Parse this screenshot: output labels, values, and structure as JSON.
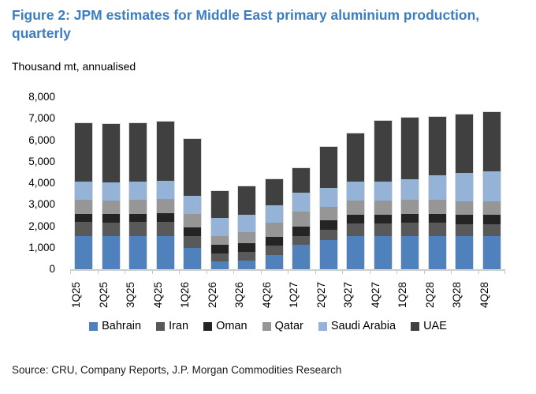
{
  "figure": {
    "title": "Figure 2: JPM estimates for Middle East primary aluminium production, quarterly",
    "subtitle": "Thousand mt, annualised",
    "source": "Source: CRU, Company Reports, J.P. Morgan Commodities Research",
    "title_color": "#3b7dbf"
  },
  "chart_data": {
    "type": "bar",
    "stacked": true,
    "title": "Figure 2: JPM estimates for Middle East primary aluminium production, quarterly",
    "ylabel": "Thousand mt, annualised",
    "xlabel": "",
    "ylim": [
      0,
      8000
    ],
    "ytick_interval": 1000,
    "ytick_labels": [
      "0",
      "1,000",
      "2,000",
      "3,000",
      "4,000",
      "5,000",
      "6,000",
      "7,000",
      "8,000"
    ],
    "grid": false,
    "legend_position": "bottom",
    "categories": [
      "1Q25",
      "2Q25",
      "3Q25",
      "4Q25",
      "1Q26",
      "2Q26",
      "3Q26",
      "4Q26",
      "1Q27",
      "2Q27",
      "3Q27",
      "4Q27",
      "1Q28",
      "2Q28",
      "3Q28",
      "4Q28"
    ],
    "series": [
      {
        "name": "Bahrain",
        "color": "#4f81bd",
        "values": [
          1550,
          1550,
          1560,
          1560,
          980,
          350,
          400,
          670,
          1150,
          1350,
          1540,
          1540,
          1560,
          1560,
          1540,
          1540
        ]
      },
      {
        "name": "Iran",
        "color": "#595959",
        "values": [
          640,
          620,
          630,
          630,
          560,
          400,
          400,
          430,
          400,
          500,
          600,
          590,
          620,
          600,
          550,
          550
        ]
      },
      {
        "name": "Oman",
        "color": "#242424",
        "values": [
          390,
          390,
          390,
          400,
          400,
          400,
          420,
          410,
          420,
          410,
          390,
          400,
          400,
          420,
          440,
          440
        ]
      },
      {
        "name": "Qatar",
        "color": "#969696",
        "values": [
          650,
          640,
          650,
          660,
          620,
          400,
          500,
          650,
          700,
          640,
          650,
          660,
          660,
          650,
          640,
          640
        ]
      },
      {
        "name": "Saudi Arabia",
        "color": "#95b3d7",
        "values": [
          860,
          850,
          860,
          860,
          840,
          830,
          830,
          800,
          900,
          870,
          890,
          890,
          950,
          1150,
          1320,
          1370
        ]
      },
      {
        "name": "UAE",
        "color": "#404040",
        "values": [
          2710,
          2700,
          2710,
          2740,
          2650,
          1270,
          1300,
          1240,
          1130,
          1930,
          2230,
          2820,
          2860,
          2720,
          2710,
          2760
        ]
      }
    ],
    "totals": [
      6800,
      6750,
      6800,
      6850,
      6050,
      3650,
      3850,
      4200,
      4700,
      5700,
      6300,
      6900,
      7050,
      7100,
      7200,
      7300
    ]
  }
}
